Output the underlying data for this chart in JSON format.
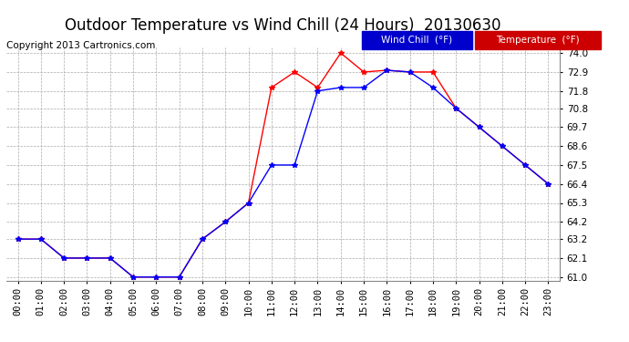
{
  "title": "Outdoor Temperature vs Wind Chill (24 Hours)  20130630",
  "copyright": "Copyright 2013 Cartronics.com",
  "x_labels": [
    "00:00",
    "01:00",
    "02:00",
    "03:00",
    "04:00",
    "05:00",
    "06:00",
    "07:00",
    "08:00",
    "09:00",
    "10:00",
    "11:00",
    "12:00",
    "13:00",
    "14:00",
    "15:00",
    "16:00",
    "17:00",
    "18:00",
    "19:00",
    "20:00",
    "21:00",
    "22:00",
    "23:00"
  ],
  "temperature": [
    63.2,
    63.2,
    62.1,
    62.1,
    62.1,
    61.0,
    61.0,
    61.0,
    63.2,
    64.2,
    65.3,
    72.0,
    72.9,
    72.0,
    74.0,
    72.9,
    73.0,
    72.9,
    72.9,
    70.8,
    69.7,
    68.6,
    67.5,
    66.4
  ],
  "wind_chill": [
    63.2,
    63.2,
    62.1,
    62.1,
    62.1,
    61.0,
    61.0,
    61.0,
    63.2,
    64.2,
    65.3,
    67.5,
    67.5,
    71.8,
    72.0,
    72.0,
    73.0,
    72.9,
    72.0,
    70.8,
    69.7,
    68.6,
    67.5,
    66.4
  ],
  "temp_color": "#ff0000",
  "wind_chill_color": "#0000ff",
  "bg_color": "#ffffff",
  "plot_bg_color": "#ffffff",
  "grid_color": "#aaaaaa",
  "ylim_min": 61.0,
  "ylim_max": 74.0,
  "yticks": [
    61.0,
    62.1,
    63.2,
    64.2,
    65.3,
    66.4,
    67.5,
    68.6,
    69.7,
    70.8,
    71.8,
    72.9,
    74.0
  ],
  "legend_wind_label": "Wind Chill  (°F)",
  "legend_temp_label": "Temperature  (°F)",
  "legend_wind_bg": "#0000cc",
  "legend_temp_bg": "#cc0000",
  "legend_text_color": "#ffffff",
  "title_fontsize": 12,
  "copyright_fontsize": 7.5,
  "tick_fontsize": 7.5,
  "marker": "*",
  "marker_size": 4
}
